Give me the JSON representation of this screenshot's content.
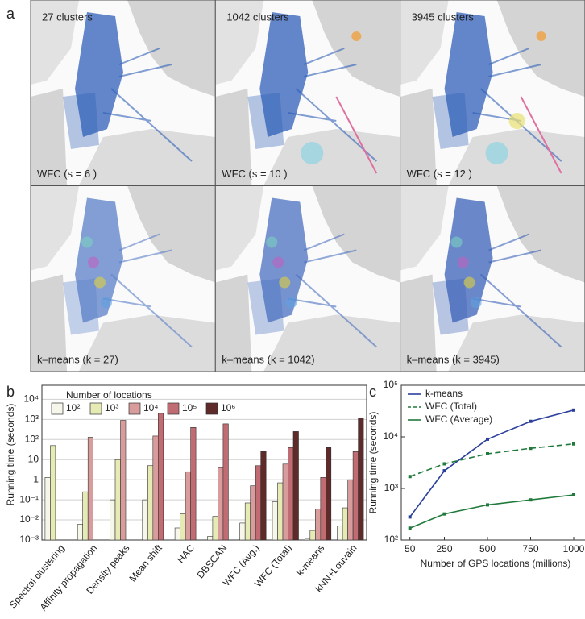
{
  "panel_a": {
    "label": "a",
    "panels": [
      {
        "title": "27 clusters",
        "caption": "WFC (s = 6 )"
      },
      {
        "title": "1042 clusters",
        "caption": "WFC (s = 10 )"
      },
      {
        "title": "3945 clusters",
        "caption": "WFC (s = 12 )"
      },
      {
        "caption": "k–means (k = 27)"
      },
      {
        "caption": "k–means (k = 1042)"
      },
      {
        "caption": "k–means (k = 3945)"
      }
    ]
  },
  "chart_data": [
    {
      "type": "bar",
      "panel_label": "b",
      "y_label": "Running time (seconds)",
      "legend_title": "Number of locations",
      "categories": [
        "Spectral clustering",
        "Affinity propagation",
        "Density peaks",
        "Mean shift",
        "HAC",
        "DBSCAN",
        "WFC (Avg.)",
        "WFC (Total)",
        "k-means",
        "kNN+Louvain"
      ],
      "log_y": true,
      "grid": true,
      "ylim": [
        0.001,
        50000
      ],
      "yticks": [
        {
          "value": 0.001,
          "label": "10⁻³"
        },
        {
          "value": 0.01,
          "label": "10⁻²"
        },
        {
          "value": 0.1,
          "label": "10⁻¹"
        },
        1,
        10,
        {
          "value": 100,
          "label": "10²"
        },
        {
          "value": 1000,
          "label": "10³"
        },
        {
          "value": 10000,
          "label": "10⁴"
        }
      ],
      "series": [
        {
          "name": "10²",
          "color": "#f6f6ea",
          "values": [
            1.3,
            0.006,
            0.1,
            0.1,
            0.004,
            0.0015,
            0.007,
            0.08,
            0.0012,
            0.005
          ]
        },
        {
          "name": "10³",
          "color": "#e6ebb6",
          "values": [
            50,
            0.25,
            10,
            5,
            0.02,
            0.015,
            0.07,
            0.7,
            0.003,
            0.04
          ]
        },
        {
          "name": "10⁴",
          "color": "#d99c9c",
          "values": [
            null,
            130,
            900,
            150,
            2.5,
            4,
            0.5,
            6,
            0.035,
            1
          ]
        },
        {
          "name": "10⁵",
          "color": "#c06c72",
          "values": [
            null,
            null,
            null,
            2000,
            400,
            600,
            5,
            40,
            1.3,
            25
          ]
        },
        {
          "name": "10⁶",
          "color": "#5e2a2a",
          "values": [
            null,
            null,
            null,
            null,
            null,
            null,
            25,
            250,
            40,
            1200
          ]
        }
      ]
    },
    {
      "type": "line",
      "panel_label": "c",
      "y_label": "Running time (seconds)",
      "x_label": "Number of GPS locations (millions)",
      "log_y": true,
      "xlim": [
        0,
        1000
      ],
      "ylim": [
        100,
        100000
      ],
      "xticks": [
        50,
        250,
        500,
        750,
        1000
      ],
      "yticks": [
        {
          "value": 100,
          "label": "10²"
        },
        {
          "value": 1000,
          "label": "10³"
        },
        {
          "value": 10000,
          "label": "10⁴"
        },
        {
          "value": 100000,
          "label": "10⁵"
        }
      ],
      "x": [
        50,
        250,
        500,
        750,
        1000
      ],
      "series": [
        {
          "name": "k-means",
          "color": "#2b3f9c",
          "dashed": false,
          "values": [
            280,
            2200,
            9000,
            20000,
            33000
          ]
        },
        {
          "name": "WFC (Total)",
          "color": "#1f7a3c",
          "dashed": true,
          "values": [
            1700,
            3000,
            4700,
            6000,
            7300
          ]
        },
        {
          "name": "WFC (Average)",
          "color": "#1f7a3c",
          "dashed": false,
          "values": [
            170,
            320,
            480,
            600,
            750
          ]
        }
      ]
    }
  ]
}
